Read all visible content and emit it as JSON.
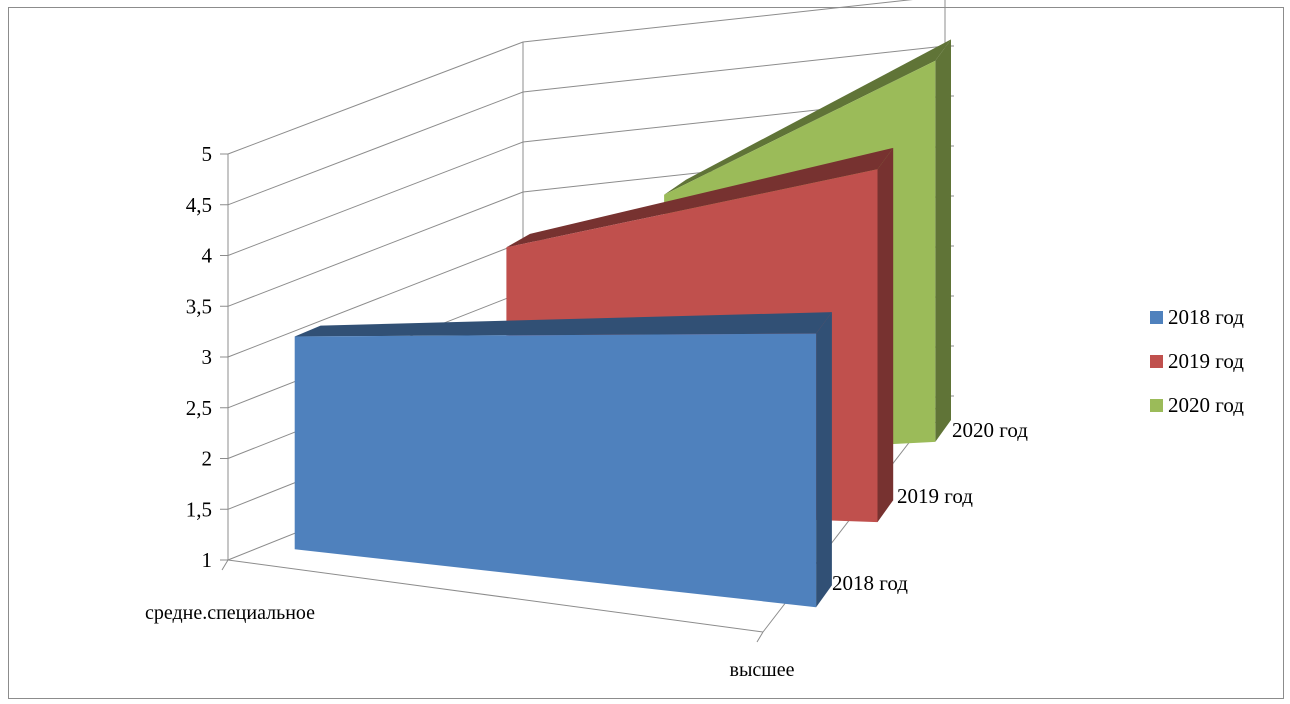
{
  "chart_data": {
    "type": "area",
    "title": "",
    "xlabel": "",
    "ylabel": "",
    "categories": [
      "средне.специальное",
      "высшее"
    ],
    "series_axis": [
      "2018 год",
      "2019 год",
      "2020 год"
    ],
    "series": [
      {
        "name": "2018 год",
        "values": [
          3.1,
          3.7
        ],
        "color": "#4F81BD"
      },
      {
        "name": "2019 год",
        "values": [
          3.6,
          4.5
        ],
        "color": "#C0504D"
      },
      {
        "name": "2020 год",
        "values": [
          3.6,
          4.8
        ],
        "color": "#9BBB59"
      }
    ],
    "yticks": [
      "1",
      "1,5",
      "2",
      "2,5",
      "3",
      "3,5",
      "4",
      "4,5",
      "5"
    ],
    "ylim": [
      1,
      5
    ],
    "grid": true,
    "legend_position": "right"
  }
}
